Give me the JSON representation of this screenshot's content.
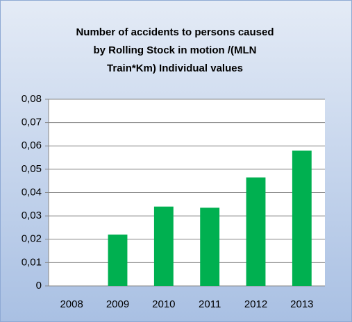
{
  "chart_data": {
    "type": "bar",
    "title": [
      "Number of  accidents to persons caused",
      "by Rolling Stock in motion /(MLN",
      "Train*Km)   Individual values"
    ],
    "categories": [
      "2008",
      "2009",
      "2010",
      "2011",
      "2012",
      "2013"
    ],
    "values": [
      0,
      0.022,
      0.034,
      0.0335,
      0.0465,
      0.058
    ],
    "color": "#00b050",
    "ylim": [
      0,
      0.08
    ],
    "yticks": [
      0,
      {
        "value": 0.01,
        "label": "0,01"
      },
      {
        "value": 0.02,
        "label": "0,02"
      },
      {
        "value": 0.03,
        "label": "0,03"
      },
      {
        "value": 0.04,
        "label": "0,04"
      },
      {
        "value": 0.05,
        "label": "0,05"
      },
      {
        "value": 0.06,
        "label": "0,06"
      },
      {
        "value": 0.07,
        "label": "0,07"
      },
      {
        "value": 0.08,
        "label": "0,08"
      }
    ],
    "grid": true
  }
}
